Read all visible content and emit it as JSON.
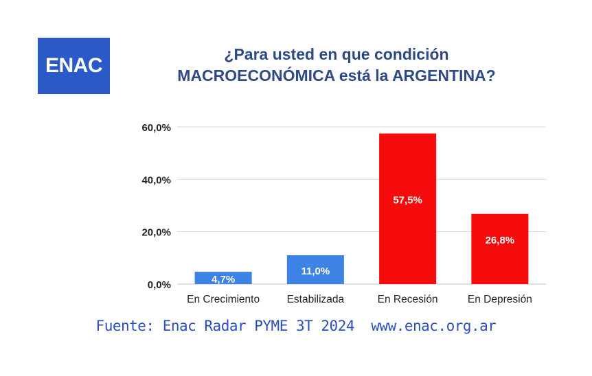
{
  "logo": {
    "text": "ENAC",
    "color": "#2a59c8"
  },
  "title": {
    "line1": "¿Para usted en que condición",
    "line2": "MACROECONÓMICA está la ARGENTINA?"
  },
  "source": {
    "text": "Fuente: Enac Radar PYME 3T 2024",
    "url": "www.enac.org.ar"
  },
  "chart_data": {
    "type": "bar",
    "categories": [
      "En Crecimiento",
      "Estabilizada",
      "En Recesión",
      "En Depresión"
    ],
    "values": [
      4.7,
      11.0,
      57.5,
      26.8
    ],
    "data_labels": [
      "4,7%",
      "11,0%",
      "57,5%",
      "26,8%"
    ],
    "bar_colors": [
      "#3d83e6",
      "#3d83e6",
      "#f50b0b",
      "#f50b0b"
    ],
    "ylim": [
      0,
      60
    ],
    "yticks": [
      0,
      20,
      40,
      60
    ],
    "ytick_labels": [
      "0,0%",
      "20,0%",
      "40,0%",
      "60,0%"
    ],
    "grid": true,
    "grid_color": "#d9d9d9",
    "title": "",
    "xlabel": "",
    "ylabel": ""
  }
}
